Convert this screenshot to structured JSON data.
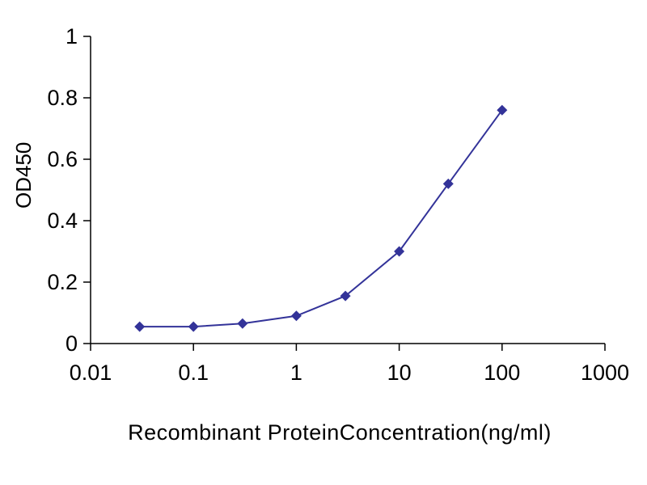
{
  "chart_data": {
    "type": "line",
    "title": "",
    "xlabel": "Recombinant ProteinConcentration(ng/ml)",
    "ylabel": "OD450",
    "x_scale": "log",
    "xlim": [
      0.01,
      1000
    ],
    "ylim": [
      0,
      1
    ],
    "x_ticks": [
      0.01,
      0.1,
      1,
      10,
      100,
      1000
    ],
    "x_tick_labels": [
      "0.01",
      "0.1",
      "1",
      "10",
      "100",
      "1000"
    ],
    "y_ticks": [
      0,
      0.2,
      0.4,
      0.6,
      0.8,
      1
    ],
    "y_tick_labels": [
      "0",
      "0.2",
      "0.4",
      "0.6",
      "0.8",
      "1"
    ],
    "grid": false,
    "legend": false,
    "background": "#ffffff",
    "axis_color": "#000000",
    "series": [
      {
        "name": "OD450",
        "marker": "diamond",
        "color": "#333399",
        "x": [
          0.03,
          0.1,
          0.3,
          1,
          3,
          10,
          30,
          100
        ],
        "y": [
          0.055,
          0.055,
          0.065,
          0.09,
          0.155,
          0.3,
          0.52,
          0.76
        ]
      }
    ]
  }
}
